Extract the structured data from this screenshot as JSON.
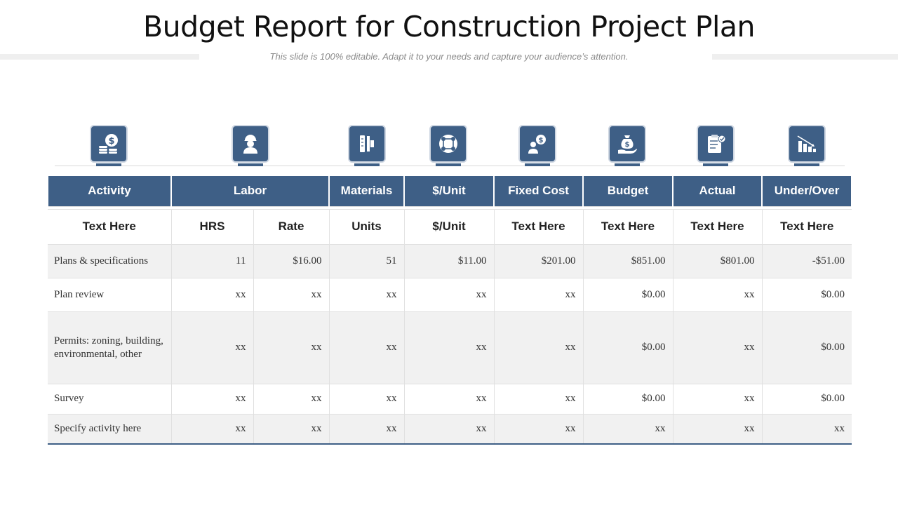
{
  "title": "Budget Report for Construction Project Plan",
  "subtitle": "This slide is 100% editable. Adapt it to your  needs and capture your audience’s attention.",
  "accent_color": "#3e5f86",
  "icons": [
    "money-coins-icon",
    "worker-icon",
    "ruler-tools-icon",
    "network-nodes-icon",
    "fixed-cost-person-icon",
    "money-bag-hand-icon",
    "clipboard-checklist-icon",
    "declining-bar-chart-icon"
  ],
  "table": {
    "headers": [
      "Activity",
      "Labor",
      "Materials",
      "$/Unit",
      "Fixed Cost",
      "Budget",
      "Actual",
      "Under/Over"
    ],
    "subheaders": [
      "Text Here",
      "HRS",
      "Rate",
      "Units",
      "$/Unit",
      "Text Here",
      "Text Here",
      "Text Here",
      "Text Here"
    ],
    "rows": [
      [
        "Plans & specifications",
        "11",
        "$16.00",
        "51",
        "$11.00",
        "$201.00",
        "$851.00",
        "$801.00",
        "-$51.00"
      ],
      [
        "Plan review",
        "xx",
        "xx",
        "xx",
        "xx",
        "xx",
        "$0.00",
        "xx",
        "$0.00"
      ],
      [
        "Permits: zoning, building, environmental, other",
        "xx",
        "xx",
        "xx",
        "xx",
        "xx",
        "$0.00",
        "xx",
        "$0.00"
      ],
      [
        "Survey",
        "xx",
        "xx",
        "xx",
        "xx",
        "xx",
        "$0.00",
        "xx",
        "$0.00"
      ],
      [
        "Specify activity here",
        "xx",
        "xx",
        "xx",
        "xx",
        "xx",
        "xx",
        "xx",
        "xx"
      ]
    ]
  }
}
